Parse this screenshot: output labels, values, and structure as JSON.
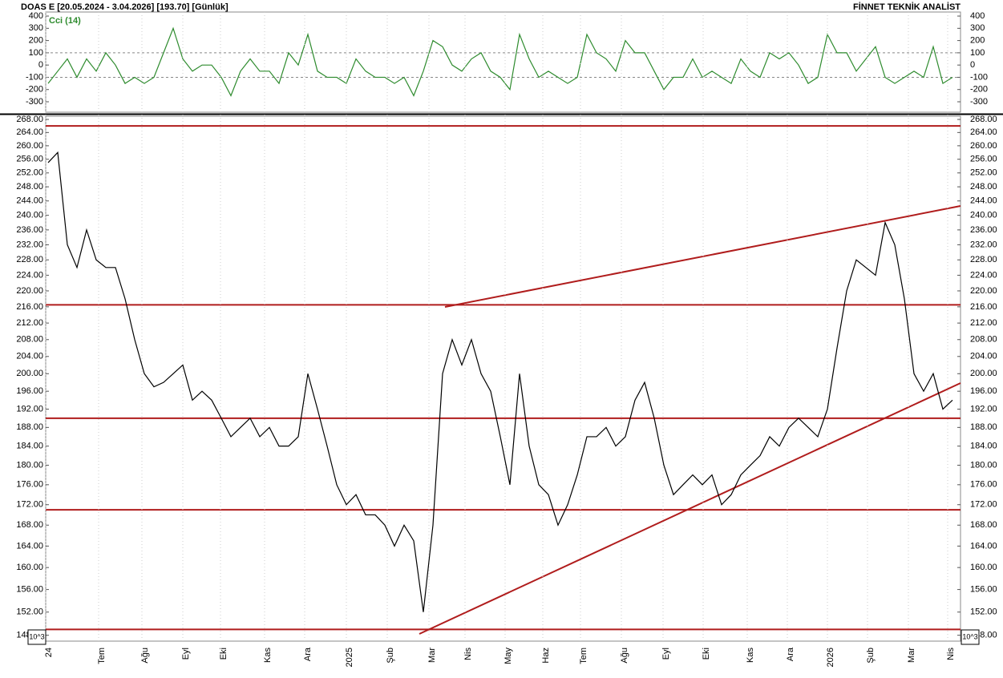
{
  "header": {
    "symbol": "DOAS  E  [20.05.2024 - 3.04.2026]  [193.70]  [Günlük]",
    "brand": "FİNNET TEKNİK ANALİST"
  },
  "chart_data": [
    {
      "type": "line",
      "title": "Cci (14)",
      "series": [
        {
          "name": "Cci (14)",
          "color": "#2e8b2e",
          "values": [
            -150,
            -50,
            50,
            -100,
            50,
            -50,
            100,
            0,
            -150,
            -100,
            -150,
            -100,
            100,
            300,
            50,
            -50,
            0,
            0,
            -100,
            -250,
            -50,
            50,
            -50,
            -50,
            -150,
            100,
            0,
            250,
            -50,
            -100,
            -100,
            -150,
            50,
            -50,
            -100,
            -100,
            -150,
            -100,
            -250,
            -50,
            200,
            150,
            0,
            -50,
            50,
            100,
            -50,
            -100,
            -200,
            250,
            50,
            -100,
            -50,
            -100,
            -150,
            -100,
            250,
            100,
            50,
            -50,
            200,
            100,
            100,
            -50,
            -200,
            -100,
            -100,
            50,
            -100,
            -50,
            -100,
            -150,
            50,
            -50,
            -100,
            100,
            50,
            100,
            0,
            -150,
            -100,
            250,
            100,
            100,
            -50,
            50,
            150,
            -100,
            -150,
            -100,
            -50,
            -100,
            150,
            -150,
            -100
          ]
        }
      ],
      "ylim": [
        -385,
        433
      ],
      "yticks": [
        400,
        300,
        200,
        100,
        0,
        -100,
        -200,
        -300
      ],
      "reference_lines": [
        100,
        -100
      ]
    },
    {
      "type": "line",
      "log_scale": true,
      "scale_label": "10^3",
      "series": [
        {
          "color": "#000000",
          "values": [
            255,
            258,
            232,
            226,
            236,
            228,
            226,
            226,
            218,
            208,
            200,
            197,
            198,
            200,
            202,
            194,
            196,
            194,
            190,
            186,
            188,
            190,
            186,
            188,
            184,
            184,
            186,
            200,
            192,
            184,
            176,
            172,
            174,
            170,
            170,
            168,
            164,
            168,
            165,
            152,
            168,
            200,
            208,
            202,
            208,
            200,
            196,
            186,
            176,
            200,
            184,
            176,
            174,
            168,
            172,
            178,
            186,
            186,
            188,
            184,
            186,
            194,
            198,
            190,
            180,
            174,
            176,
            178,
            176,
            178,
            172,
            174,
            178,
            180,
            182,
            186,
            184,
            188,
            190,
            188,
            186,
            192,
            206,
            220,
            228,
            226,
            224,
            238,
            232,
            218,
            200,
            196,
            200,
            192,
            194
          ]
        }
      ],
      "levels": [
        266,
        216.5,
        190,
        171,
        149
      ],
      "level_color": "#b01c1c",
      "ylim": [
        147,
        269
      ],
      "yticks": [
        {
          "value": 148,
          "label": "148.00"
        },
        {
          "value": 152,
          "label": "152.00"
        },
        {
          "value": 156,
          "label": "156.00"
        },
        {
          "value": 160,
          "label": "160.00"
        },
        {
          "value": 164,
          "label": "164.00"
        },
        {
          "value": 168,
          "label": "168.00"
        },
        {
          "value": 172,
          "label": "172.00"
        },
        {
          "value": 176,
          "label": "176.00"
        },
        {
          "value": 180,
          "label": "180.00"
        },
        {
          "value": 184,
          "label": "184.00"
        },
        {
          "value": 188,
          "label": "188.00"
        },
        {
          "value": 192,
          "label": "192.00"
        },
        {
          "value": 196,
          "label": "196.00"
        },
        {
          "value": 200,
          "label": "200.00"
        },
        {
          "value": 204,
          "label": "204.00"
        },
        {
          "value": 208,
          "label": "208.00"
        },
        {
          "value": 212,
          "label": "212.00"
        },
        {
          "value": 216,
          "label": "216.00"
        },
        {
          "value": 220,
          "label": "220.00"
        },
        {
          "value": 224,
          "label": "224.00"
        },
        {
          "value": 228,
          "label": "228.00"
        },
        {
          "value": 232,
          "label": "232.00"
        },
        {
          "value": 236,
          "label": "236.00"
        },
        {
          "value": 240,
          "label": "240.00"
        },
        {
          "value": 244,
          "label": "244.00"
        },
        {
          "value": 248,
          "label": "248.00"
        },
        {
          "value": 252,
          "label": "252.00"
        },
        {
          "value": 256,
          "label": "256.00"
        },
        {
          "value": 260,
          "label": "260.00"
        },
        {
          "value": 264,
          "label": "264.00"
        },
        {
          "value": 268,
          "label": "268.00"
        }
      ],
      "x_labels": [
        "24",
        "Tem",
        "Ağu",
        "Eyl",
        "Eki",
        "Kas",
        "Ara",
        "2025",
        "Şub",
        "Mar",
        "Nis",
        "May",
        "Haz",
        "Tem",
        "Ağu",
        "Eyl",
        "Eki",
        "Kas",
        "Ara",
        "2026",
        "Şub",
        "Mar",
        "Nis"
      ]
    }
  ]
}
